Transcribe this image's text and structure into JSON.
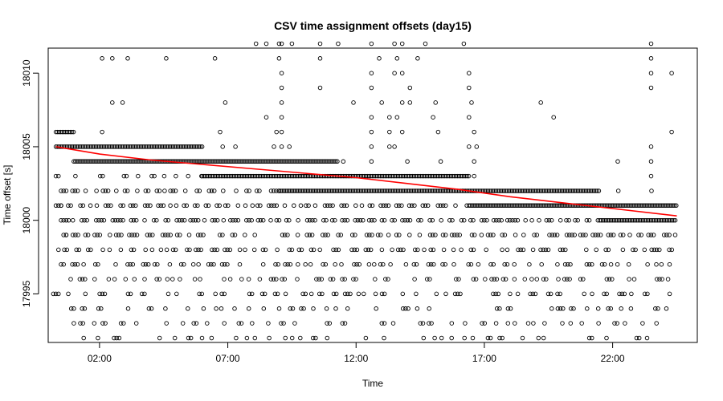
{
  "chart_data": {
    "type": "scatter",
    "title": "CSV time assignment offsets (day15)",
    "xlabel": "Time",
    "ylabel": "Time offset [s]",
    "x_unit": "hours of day",
    "xlim": [
      0.0,
      25.3
    ],
    "ylim": [
      17991.7,
      18011.7
    ],
    "x_ticks": [
      {
        "value": 2,
        "label": "02:00"
      },
      {
        "value": 7,
        "label": "07:00"
      },
      {
        "value": 12,
        "label": "12:00"
      },
      {
        "value": 17,
        "label": "17:00"
      },
      {
        "value": 22,
        "label": "22:00"
      }
    ],
    "y_ticks": [
      {
        "value": 17995,
        "label": "17995"
      },
      {
        "value": 18000,
        "label": "18000"
      },
      {
        "value": 18005,
        "label": "18005"
      },
      {
        "value": 18010,
        "label": "18010"
      }
    ],
    "series": [
      {
        "marker": "open-circle",
        "color": "#000000",
        "dense_runs": [
          {
            "y": 18006,
            "x_start": 0.3,
            "x_end": 1.0
          },
          {
            "y": 18005,
            "x_start": 0.3,
            "x_end": 6.0
          },
          {
            "y": 18004,
            "x_start": 1.0,
            "x_end": 11.3
          },
          {
            "y": 18003,
            "x_start": 6.0,
            "x_end": 16.4
          },
          {
            "y": 18002,
            "x_start": 9.0,
            "x_end": 21.5
          },
          {
            "y": 18001,
            "x_start": 16.4,
            "x_end": 24.5
          },
          {
            "y": 18000,
            "x_start": 21.5,
            "x_end": 24.5
          }
        ],
        "scatter_bands": [
          {
            "y": 18003,
            "x_start": 0.3,
            "x_end": 6.0,
            "density": 0.5
          },
          {
            "y": 18002,
            "x_start": 0.5,
            "x_end": 9.0,
            "density": 0.7
          },
          {
            "y": 18002,
            "x_start": 21.5,
            "x_end": 24.0,
            "density": 0.3
          },
          {
            "y": 18001,
            "x_start": 0.3,
            "x_end": 16.4,
            "density": 0.8
          },
          {
            "y": 18000,
            "x_start": 0.5,
            "x_end": 21.5,
            "density": 0.85
          },
          {
            "y": 17999,
            "x_start": 0.5,
            "x_end": 24.5,
            "density": 0.75
          },
          {
            "y": 17998,
            "x_start": 0.4,
            "x_end": 24.5,
            "density": 0.65
          },
          {
            "y": 17997,
            "x_start": 0.5,
            "x_end": 24.3,
            "density": 0.6
          },
          {
            "y": 17996,
            "x_start": 0.6,
            "x_end": 24.5,
            "density": 0.6
          },
          {
            "y": 17995,
            "x_start": 0.3,
            "x_end": 24.5,
            "density": 0.55
          },
          {
            "y": 17994,
            "x_start": 0.8,
            "x_end": 24.2,
            "density": 0.5
          },
          {
            "y": 17993,
            "x_start": 1.0,
            "x_end": 24.0,
            "density": 0.45
          },
          {
            "y": 17992,
            "x_start": 1.0,
            "x_end": 23.6,
            "density": 0.45
          }
        ],
        "points": [
          [
            8.1,
            18012
          ],
          [
            8.5,
            18012
          ],
          [
            9.1,
            18012
          ],
          [
            9.5,
            18012
          ],
          [
            9.0,
            18012
          ],
          [
            10.6,
            18012
          ],
          [
            11.3,
            18012
          ],
          [
            12.6,
            18012
          ],
          [
            13.5,
            18012
          ],
          [
            13.8,
            18012
          ],
          [
            14.7,
            18012
          ],
          [
            16.2,
            18012
          ],
          [
            23.5,
            18012
          ],
          [
            2.1,
            18011
          ],
          [
            2.5,
            18011
          ],
          [
            3.1,
            18011
          ],
          [
            4.6,
            18011
          ],
          [
            6.5,
            18011
          ],
          [
            9.0,
            18011
          ],
          [
            10.6,
            18011
          ],
          [
            12.9,
            18011
          ],
          [
            13.6,
            18011
          ],
          [
            14.4,
            18011
          ],
          [
            23.5,
            18011
          ],
          [
            9.1,
            18010
          ],
          [
            12.6,
            18010
          ],
          [
            13.5,
            18010
          ],
          [
            13.8,
            18010
          ],
          [
            16.4,
            18010
          ],
          [
            23.5,
            18010
          ],
          [
            24.3,
            18010
          ],
          [
            9.1,
            18009
          ],
          [
            10.6,
            18009
          ],
          [
            12.6,
            18009
          ],
          [
            14.1,
            18009
          ],
          [
            16.4,
            18009
          ],
          [
            23.5,
            18009
          ],
          [
            2.5,
            18008
          ],
          [
            2.9,
            18008
          ],
          [
            6.9,
            18008
          ],
          [
            9.1,
            18008
          ],
          [
            11.9,
            18008
          ],
          [
            13.0,
            18008
          ],
          [
            13.8,
            18008
          ],
          [
            14.1,
            18008
          ],
          [
            15.1,
            18008
          ],
          [
            16.5,
            18008
          ],
          [
            19.2,
            18008
          ],
          [
            8.5,
            18007
          ],
          [
            9.1,
            18007
          ],
          [
            12.6,
            18007
          ],
          [
            13.3,
            18007
          ],
          [
            13.6,
            18007
          ],
          [
            15.0,
            18007
          ],
          [
            16.4,
            18007
          ],
          [
            19.7,
            18007
          ],
          [
            2.1,
            18006
          ],
          [
            6.7,
            18006
          ],
          [
            8.9,
            18006
          ],
          [
            9.1,
            18006
          ],
          [
            12.6,
            18006
          ],
          [
            13.3,
            18006
          ],
          [
            13.8,
            18006
          ],
          [
            15.2,
            18006
          ],
          [
            16.6,
            18006
          ],
          [
            24.3,
            18006
          ],
          [
            6.8,
            18005
          ],
          [
            7.3,
            18005
          ],
          [
            8.8,
            18005
          ],
          [
            9.1,
            18005
          ],
          [
            9.4,
            18005
          ],
          [
            12.6,
            18005
          ],
          [
            13.3,
            18005
          ],
          [
            13.5,
            18005
          ],
          [
            16.4,
            18005
          ],
          [
            16.7,
            18005
          ],
          [
            23.5,
            18005
          ],
          [
            11.5,
            18004
          ],
          [
            12.6,
            18004
          ],
          [
            14.0,
            18004
          ],
          [
            15.3,
            18004
          ],
          [
            16.6,
            18004
          ],
          [
            22.2,
            18004
          ],
          [
            23.5,
            18004
          ],
          [
            16.6,
            18003
          ],
          [
            23.5,
            18003
          ],
          [
            0.5,
            18001
          ],
          [
            0.8,
            18000
          ],
          [
            0.7,
            17999
          ],
          [
            0.4,
            17998
          ],
          [
            0.2,
            17995
          ]
        ]
      }
    ],
    "trend_line": {
      "color": "#ff0000",
      "points": [
        [
          0.3,
          18005.0
        ],
        [
          2.0,
          18004.5
        ],
        [
          4.0,
          18004.1
        ],
        [
          6.0,
          18003.8
        ],
        [
          8.0,
          18003.5
        ],
        [
          10.0,
          18003.2
        ],
        [
          12.0,
          18002.9
        ],
        [
          14.0,
          18002.5
        ],
        [
          16.0,
          18002.1
        ],
        [
          18.0,
          18001.6
        ],
        [
          20.0,
          18001.2
        ],
        [
          22.0,
          18000.8
        ],
        [
          24.5,
          18000.3
        ]
      ]
    },
    "grid": false,
    "legend": "none"
  }
}
